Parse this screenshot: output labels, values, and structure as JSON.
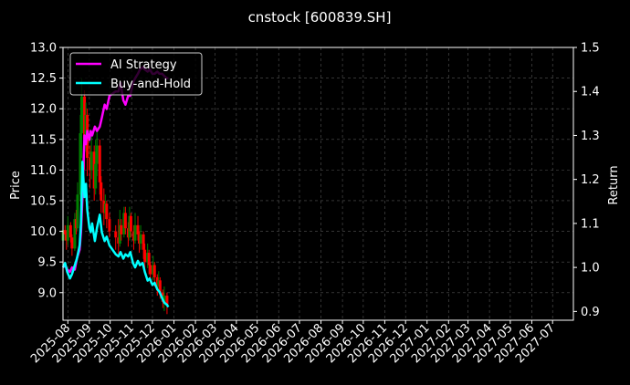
{
  "chart_data": {
    "type": "line",
    "title": "cnstock [600839.SH]",
    "ylabel_left": "Price",
    "ylabel_right": "Return",
    "ylim_left": [
      8.55,
      13.0
    ],
    "ylim_right": [
      0.88,
      1.5
    ],
    "yticks_left": [
      "9.0",
      "9.5",
      "10.0",
      "10.5",
      "11.0",
      "11.5",
      "12.0",
      "12.5",
      "13.0"
    ],
    "yticks_right": [
      "0.9",
      "1.0",
      "1.1",
      "1.2",
      "1.3",
      "1.4",
      "1.5"
    ],
    "xticks": [
      "2025-08",
      "2025-09",
      "2025-10",
      "2025-11",
      "2025-12",
      "2026-01",
      "2026-02",
      "2026-03",
      "2026-04",
      "2026-05",
      "2026-06",
      "2026-07",
      "2026-08",
      "2026-09",
      "2026-10",
      "2026-11",
      "2026-12",
      "2027-01",
      "2027-02",
      "2027-03",
      "2027-04",
      "2027-05",
      "2027-06",
      "2027-07"
    ],
    "xlim": [
      "2025-07-25",
      "2027-07-31"
    ],
    "grid": true,
    "legend_placement": "top-left",
    "colors": {
      "ai": "#ff00ff",
      "bh": "#00ffff",
      "up": "#008000",
      "down": "#ff0000",
      "grid": "#555555",
      "axis": "#ffffff"
    },
    "series": [
      {
        "name": "AI Strategy",
        "axis": "right",
        "x": [
          "2025-07-25",
          "2025-07-28",
          "2025-07-31",
          "2025-08-04",
          "2025-08-07",
          "2025-08-11",
          "2025-08-14",
          "2025-08-18",
          "2025-08-20",
          "2025-08-22",
          "2025-08-25",
          "2025-08-27",
          "2025-08-29",
          "2025-09-01",
          "2025-09-03",
          "2025-09-05",
          "2025-09-09",
          "2025-09-12",
          "2025-09-16",
          "2025-09-19",
          "2025-09-23",
          "2025-09-26",
          "2025-09-30",
          "2025-10-09",
          "2025-10-13",
          "2025-10-16",
          "2025-10-20",
          "2025-10-23",
          "2025-10-27",
          "2025-10-30",
          "2025-11-03",
          "2025-11-06",
          "2025-11-10",
          "2025-11-13",
          "2025-11-17",
          "2025-11-20",
          "2025-11-24",
          "2025-11-27",
          "2025-12-01",
          "2025-12-04",
          "2025-12-08",
          "2025-12-11",
          "2025-12-15",
          "2025-12-18",
          "2025-12-22",
          "2025-12-24"
        ],
        "values": [
          1.0,
          1.005,
          0.995,
          0.99,
          1.0,
          0.995,
          1.02,
          1.04,
          1.08,
          1.16,
          1.3,
          1.28,
          1.31,
          1.29,
          1.31,
          1.3,
          1.32,
          1.31,
          1.32,
          1.34,
          1.37,
          1.36,
          1.39,
          1.4,
          1.4,
          1.42,
          1.38,
          1.37,
          1.39,
          1.39,
          1.42,
          1.43,
          1.44,
          1.45,
          1.455,
          1.45,
          1.445,
          1.45,
          1.44,
          1.44,
          1.445,
          1.44,
          1.44,
          1.435,
          1.43,
          1.43
        ]
      },
      {
        "name": "Buy-and-Hold",
        "axis": "right",
        "x": [
          "2025-07-25",
          "2025-07-28",
          "2025-07-31",
          "2025-08-04",
          "2025-08-07",
          "2025-08-11",
          "2025-08-14",
          "2025-08-18",
          "2025-08-20",
          "2025-08-22",
          "2025-08-25",
          "2025-08-27",
          "2025-08-29",
          "2025-09-01",
          "2025-09-03",
          "2025-09-05",
          "2025-09-09",
          "2025-09-12",
          "2025-09-16",
          "2025-09-19",
          "2025-09-23",
          "2025-09-26",
          "2025-09-30",
          "2025-10-09",
          "2025-10-13",
          "2025-10-16",
          "2025-10-20",
          "2025-10-23",
          "2025-10-27",
          "2025-10-30",
          "2025-11-03",
          "2025-11-06",
          "2025-11-10",
          "2025-11-13",
          "2025-11-17",
          "2025-11-20",
          "2025-11-24",
          "2025-11-27",
          "2025-12-01",
          "2025-12-04",
          "2025-12-08",
          "2025-12-11",
          "2025-12-15",
          "2025-12-18",
          "2025-12-22",
          "2025-12-24"
        ],
        "values": [
          1.0,
          1.01,
          0.99,
          0.975,
          0.985,
          1.005,
          1.02,
          1.05,
          1.1,
          1.24,
          1.16,
          1.19,
          1.13,
          1.09,
          1.08,
          1.1,
          1.06,
          1.09,
          1.12,
          1.08,
          1.06,
          1.07,
          1.05,
          1.03,
          1.025,
          1.035,
          1.02,
          1.03,
          1.025,
          1.035,
          1.01,
          1.0,
          1.015,
          1.005,
          1.01,
          0.99,
          0.97,
          0.975,
          0.96,
          0.965,
          0.95,
          0.945,
          0.93,
          0.92,
          0.915,
          0.91
        ]
      }
    ],
    "candles": [
      {
        "d": "2025-07-25",
        "o": 9.85,
        "c": 10.02,
        "h": 10.18,
        "l": 9.75
      },
      {
        "d": "2025-07-28",
        "o": 10.02,
        "c": 9.95,
        "h": 10.1,
        "l": 9.85
      },
      {
        "d": "2025-07-30",
        "o": 9.95,
        "c": 9.85,
        "h": 10.02,
        "l": 9.7
      },
      {
        "d": "2025-08-01",
        "o": 9.85,
        "c": 10.1,
        "h": 10.25,
        "l": 9.78
      },
      {
        "d": "2025-08-05",
        "o": 10.1,
        "c": 9.9,
        "h": 10.15,
        "l": 9.82
      },
      {
        "d": "2025-08-07",
        "o": 9.9,
        "c": 9.72,
        "h": 9.95,
        "l": 9.6
      },
      {
        "d": "2025-08-11",
        "o": 9.72,
        "c": 10.2,
        "h": 10.3,
        "l": 9.68
      },
      {
        "d": "2025-08-13",
        "o": 10.2,
        "c": 10.05,
        "h": 10.35,
        "l": 9.95
      },
      {
        "d": "2025-08-15",
        "o": 10.05,
        "c": 10.6,
        "h": 10.8,
        "l": 10.0
      },
      {
        "d": "2025-08-19",
        "o": 10.6,
        "c": 11.6,
        "h": 11.9,
        "l": 10.5
      },
      {
        "d": "2025-08-21",
        "o": 11.6,
        "c": 12.2,
        "h": 12.5,
        "l": 11.2
      },
      {
        "d": "2025-08-25",
        "o": 12.2,
        "c": 11.5,
        "h": 12.3,
        "l": 11.0
      },
      {
        "d": "2025-08-27",
        "o": 11.5,
        "c": 11.9,
        "h": 12.1,
        "l": 11.3
      },
      {
        "d": "2025-08-29",
        "o": 11.9,
        "c": 11.2,
        "h": 12.0,
        "l": 10.9
      },
      {
        "d": "2025-09-02",
        "o": 11.2,
        "c": 11.0,
        "h": 11.4,
        "l": 10.7
      },
      {
        "d": "2025-09-04",
        "o": 11.0,
        "c": 11.3,
        "h": 11.6,
        "l": 10.85
      },
      {
        "d": "2025-09-08",
        "o": 11.3,
        "c": 10.7,
        "h": 11.4,
        "l": 10.5
      },
      {
        "d": "2025-09-10",
        "o": 10.7,
        "c": 11.1,
        "h": 11.5,
        "l": 10.6
      },
      {
        "d": "2025-09-12",
        "o": 11.1,
        "c": 11.4,
        "h": 11.7,
        "l": 10.9
      },
      {
        "d": "2025-09-16",
        "o": 11.4,
        "c": 10.8,
        "h": 11.5,
        "l": 10.6
      },
      {
        "d": "2025-09-18",
        "o": 10.8,
        "c": 10.5,
        "h": 10.9,
        "l": 10.3
      },
      {
        "d": "2025-09-22",
        "o": 10.5,
        "c": 10.3,
        "h": 10.7,
        "l": 10.1
      },
      {
        "d": "2025-09-24",
        "o": 10.3,
        "c": 10.45,
        "h": 10.6,
        "l": 10.2
      },
      {
        "d": "2025-09-26",
        "o": 10.45,
        "c": 10.2,
        "h": 10.5,
        "l": 10.05
      },
      {
        "d": "2025-09-30",
        "o": 10.2,
        "c": 10.0,
        "h": 10.3,
        "l": 9.9
      },
      {
        "d": "2025-10-09",
        "o": 10.0,
        "c": 9.9,
        "h": 10.1,
        "l": 9.7
      },
      {
        "d": "2025-10-13",
        "o": 9.9,
        "c": 9.8,
        "h": 10.2,
        "l": 9.6
      },
      {
        "d": "2025-10-15",
        "o": 9.8,
        "c": 10.1,
        "h": 10.35,
        "l": 9.75
      },
      {
        "d": "2025-10-17",
        "o": 10.1,
        "c": 9.95,
        "h": 10.2,
        "l": 9.85
      },
      {
        "d": "2025-10-21",
        "o": 9.95,
        "c": 10.3,
        "h": 10.4,
        "l": 9.9
      },
      {
        "d": "2025-10-23",
        "o": 10.3,
        "c": 10.05,
        "h": 10.4,
        "l": 9.95
      },
      {
        "d": "2025-10-27",
        "o": 10.05,
        "c": 9.9,
        "h": 10.15,
        "l": 9.75
      },
      {
        "d": "2025-10-29",
        "o": 9.9,
        "c": 10.25,
        "h": 10.4,
        "l": 9.85
      },
      {
        "d": "2025-10-31",
        "o": 10.25,
        "c": 10.0,
        "h": 10.3,
        "l": 9.9
      },
      {
        "d": "2025-11-04",
        "o": 10.0,
        "c": 9.85,
        "h": 10.1,
        "l": 9.7
      },
      {
        "d": "2025-11-06",
        "o": 9.85,
        "c": 10.1,
        "h": 10.3,
        "l": 9.8
      },
      {
        "d": "2025-11-10",
        "o": 10.1,
        "c": 9.95,
        "h": 10.25,
        "l": 9.85
      },
      {
        "d": "2025-11-12",
        "o": 9.95,
        "c": 9.8,
        "h": 10.0,
        "l": 9.65
      },
      {
        "d": "2025-11-14",
        "o": 9.8,
        "c": 9.95,
        "h": 10.1,
        "l": 9.7
      },
      {
        "d": "2025-11-18",
        "o": 9.95,
        "c": 9.7,
        "h": 10.0,
        "l": 9.55
      },
      {
        "d": "2025-11-20",
        "o": 9.7,
        "c": 9.5,
        "h": 9.8,
        "l": 9.35
      },
      {
        "d": "2025-11-24",
        "o": 9.5,
        "c": 9.65,
        "h": 9.8,
        "l": 9.4
      },
      {
        "d": "2025-11-26",
        "o": 9.65,
        "c": 9.45,
        "h": 9.7,
        "l": 9.3
      },
      {
        "d": "2025-11-28",
        "o": 9.45,
        "c": 9.3,
        "h": 9.5,
        "l": 9.15
      },
      {
        "d": "2025-12-02",
        "o": 9.3,
        "c": 9.45,
        "h": 9.6,
        "l": 9.2
      },
      {
        "d": "2025-12-04",
        "o": 9.45,
        "c": 9.25,
        "h": 9.5,
        "l": 9.1
      },
      {
        "d": "2025-12-08",
        "o": 9.25,
        "c": 9.1,
        "h": 9.3,
        "l": 8.95
      },
      {
        "d": "2025-12-10",
        "o": 9.1,
        "c": 9.2,
        "h": 9.35,
        "l": 9.0
      },
      {
        "d": "2025-12-12",
        "o": 9.2,
        "c": 9.0,
        "h": 9.25,
        "l": 8.9
      },
      {
        "d": "2025-12-16",
        "o": 9.0,
        "c": 8.85,
        "h": 9.05,
        "l": 8.75
      },
      {
        "d": "2025-12-18",
        "o": 8.85,
        "c": 8.95,
        "h": 9.1,
        "l": 8.7
      },
      {
        "d": "2025-12-22",
        "o": 8.95,
        "c": 8.8,
        "h": 9.0,
        "l": 8.65
      }
    ]
  }
}
